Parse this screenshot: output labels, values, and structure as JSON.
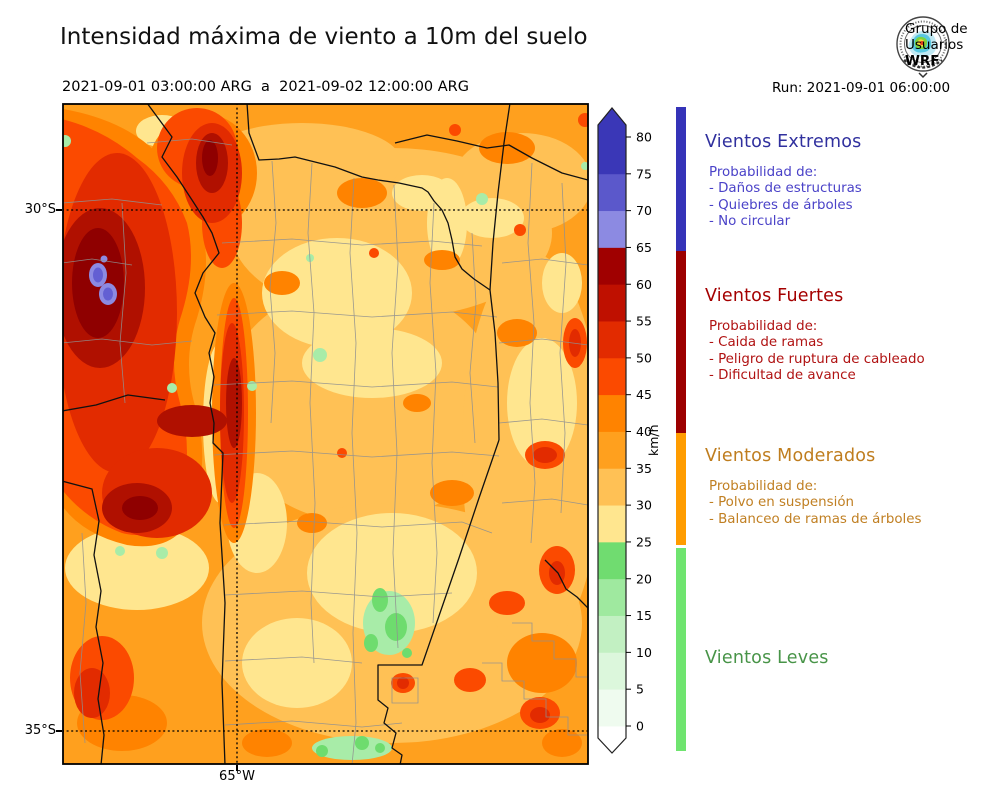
{
  "header": {
    "title": "Intensidad máxima de viento a 10m del suelo",
    "period": "2021-09-01 03:00:00 ARG  a  2021-09-02 12:00:00 ARG",
    "run_label": "Run: 2021-09-01 06:00:00"
  },
  "logo": {
    "line1": "Grupo de",
    "line2": "Usuarios",
    "line3": "WRF"
  },
  "map": {
    "lat30": "30°S",
    "lat35": "35°S",
    "lon65": "65°W"
  },
  "colorbar": {
    "unit": "km/h",
    "ticks": [
      "80",
      "75",
      "70",
      "65",
      "60",
      "55",
      "50",
      "45",
      "40",
      "35",
      "30",
      "25",
      "20",
      "15",
      "10",
      "5",
      "0"
    ],
    "segments_bottom_up": [
      {
        "range": "0-5",
        "color": "#EFFBEF"
      },
      {
        "range": "5-10",
        "color": "#DCF7DC"
      },
      {
        "range": "10-15",
        "color": "#C2F0C2"
      },
      {
        "range": "15-20",
        "color": "#9FE99F"
      },
      {
        "range": "20-25",
        "color": "#70DC70"
      },
      {
        "range": "25-30",
        "color": "#FFE68F"
      },
      {
        "range": "30-35",
        "color": "#FFC155"
      },
      {
        "range": "35-40",
        "color": "#FFA01E"
      },
      {
        "range": "40-45",
        "color": "#FF8300"
      },
      {
        "range": "45-50",
        "color": "#FB4A00"
      },
      {
        "range": "50-55",
        "color": "#E22B00"
      },
      {
        "range": "55-60",
        "color": "#BF1000"
      },
      {
        "range": "60-65",
        "color": "#A00000"
      },
      {
        "range": "65-70",
        "color": "#8C8AE2"
      },
      {
        "range": "70-75",
        "color": "#5B58CB"
      },
      {
        "range": "75-80",
        "color": "#3A37B7"
      }
    ],
    "extend_over_color": "#3A37B7",
    "extend_under_color": "#FFFFFF"
  },
  "category_strip": [
    {
      "name": "Vientos Extremos",
      "range_kmh": "> 65",
      "color": "#3533B8"
    },
    {
      "name": "Vientos Fuertes",
      "range_kmh": "40 - 65",
      "color": "#9C0000"
    },
    {
      "name": "Vientos Moderados",
      "range_kmh": "25 - 40",
      "color": "#FF9C00"
    },
    {
      "name": "Vientos Leves",
      "range_kmh": "0 - 25",
      "color": "#6FE46F"
    }
  ],
  "legend_sections": [
    {
      "title": "Vientos Extremos",
      "title_color": "#30309E",
      "body_color": "#4A42C8",
      "lines": [
        "Probabilidad de:",
        "- Daños de estructuras",
        "- Quiebres de árboles",
        "- No circular"
      ]
    },
    {
      "title": "Vientos Fuertes",
      "title_color": "#A40000",
      "body_color": "#B01212",
      "lines": [
        "Probabilidad de:",
        "- Caida de ramas",
        "- Peligro de ruptura de cableado",
        "- Dificultad de avance"
      ]
    },
    {
      "title": "Vientos Moderados",
      "title_color": "#BF7D1E",
      "body_color": "#C07F22",
      "lines": [
        "Probabilidad de:",
        "- Polvo en suspensión",
        "- Balanceo de ramas de árboles"
      ]
    },
    {
      "title": "Vientos Leves",
      "title_color": "#489448",
      "body_color": "#489448",
      "lines": []
    }
  ],
  "chart_data": {
    "type": "heatmap",
    "title": "Intensidad máxima de viento a 10m del suelo",
    "period": "2021-09-01 03:00:00 ARG  a  2021-09-02 12:00:00 ARG",
    "run": "2021-09-01 06:00:00",
    "unit": "km/h",
    "levels": [
      0,
      5,
      10,
      15,
      20,
      25,
      30,
      35,
      40,
      45,
      50,
      55,
      60,
      65,
      70,
      75,
      80
    ],
    "level_colors": [
      "#EFFBEF",
      "#DCF7DC",
      "#C2F0C2",
      "#9FE99F",
      "#70DC70",
      "#FFE68F",
      "#FFC155",
      "#FFA01E",
      "#FF8300",
      "#FB4A00",
      "#E22B00",
      "#BF1000",
      "#A00000",
      "#8C8AE2",
      "#5B58CB",
      "#3A37B7"
    ],
    "extent": {
      "lat_ticks": [
        "30°S",
        "35°S"
      ],
      "lon_ticks": [
        "65°W"
      ]
    },
    "categories": [
      {
        "name": "Vientos Extremos",
        "range_kmh": "> 65",
        "color": "#3533B8"
      },
      {
        "name": "Vientos Fuertes",
        "range_kmh": "40 - 65",
        "color": "#9C0000"
      },
      {
        "name": "Vientos Moderados",
        "range_kmh": "25 - 40",
        "color": "#FF9C00"
      },
      {
        "name": "Vientos Leves",
        "range_kmh": "0 - 25",
        "color": "#6FE46F"
      }
    ]
  }
}
